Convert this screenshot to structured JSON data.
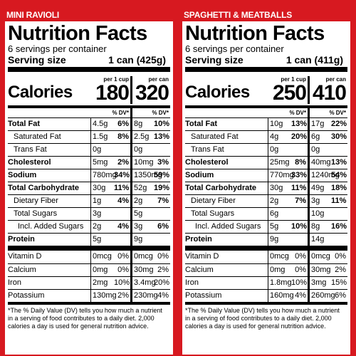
{
  "colors": {
    "brand_red": "#d71920",
    "text": "#000000",
    "background": "#ffffff"
  },
  "panels": [
    {
      "product": "MINI RAVIOLI",
      "title": "Nutrition Facts",
      "servings": "6 servings per container",
      "serving_size_label": "Serving size",
      "serving_size_value": "1 can (425g)",
      "calories_label": "Calories",
      "per_cup_label": "per 1 cup",
      "per_can_label": "per can",
      "calories_cup": "180",
      "calories_can": "320",
      "dv_label_cup": "% DV*",
      "dv_label_can": "% DV*",
      "rows": [
        {
          "label": "Total Fat",
          "a1": "4.5g",
          "d1": "6%",
          "a2": "8g",
          "d2": "10%"
        },
        {
          "label": "Saturated Fat",
          "a1": "1.5g",
          "d1": "8%",
          "a2": "2.5g",
          "d2": "13%"
        },
        {
          "label": "Trans Fat",
          "a1": "0g",
          "d1": "",
          "a2": "0g",
          "d2": ""
        },
        {
          "label": "Cholesterol",
          "a1": "5mg",
          "d1": "2%",
          "a2": "10mg",
          "d2": "3%"
        },
        {
          "label": "Sodium",
          "a1": "780mg",
          "d1": "34%",
          "a2": "1350mg",
          "d2": "59%"
        },
        {
          "label": "Total Carbohydrate",
          "a1": "30g",
          "d1": "11%",
          "a2": "52g",
          "d2": "19%"
        },
        {
          "label": "Dietary Fiber",
          "a1": "1g",
          "d1": "4%",
          "a2": "2g",
          "d2": "7%"
        },
        {
          "label": "Total Sugars",
          "a1": "3g",
          "d1": "",
          "a2": "5g",
          "d2": ""
        },
        {
          "label": "Incl. Added Sugars",
          "a1": "2g",
          "d1": "4%",
          "a2": "3g",
          "d2": "6%"
        },
        {
          "label": "Protein",
          "a1": "5g",
          "d1": "",
          "a2": "9g",
          "d2": ""
        }
      ],
      "micros": [
        {
          "label": "Vitamin D",
          "a1": "0mcg",
          "d1": "0%",
          "a2": "0mcg",
          "d2": "0%"
        },
        {
          "label": "Calcium",
          "a1": "0mg",
          "d1": "0%",
          "a2": "30mg",
          "d2": "2%"
        },
        {
          "label": "Iron",
          "a1": "2mg",
          "d1": "10%",
          "a2": "3.4mg",
          "d2": "20%"
        },
        {
          "label": "Potassium",
          "a1": "130mg",
          "d1": "2%",
          "a2": "230mg",
          "d2": "4%"
        }
      ],
      "footnote": "*The % Daily Value (DV) tells you how much a nutrient in a serving of food contributes to a daily diet. 2,000 calories a day is used for general nutrition advice."
    },
    {
      "product": "SPAGHETTI & MEATBALLS",
      "title": "Nutrition Facts",
      "servings": "6 servings per container",
      "serving_size_label": "Serving size",
      "serving_size_value": "1 can (411g)",
      "calories_label": "Calories",
      "per_cup_label": "per 1 cup",
      "per_can_label": "per can",
      "calories_cup": "250",
      "calories_can": "410",
      "dv_label_cup": "% DV*",
      "dv_label_can": "% DV*",
      "rows": [
        {
          "label": "Total Fat",
          "a1": "10g",
          "d1": "13%",
          "a2": "17g",
          "d2": "22%"
        },
        {
          "label": "Saturated Fat",
          "a1": "4g",
          "d1": "20%",
          "a2": "6g",
          "d2": "30%"
        },
        {
          "label": "Trans Fat",
          "a1": "0g",
          "d1": "",
          "a2": "0g",
          "d2": ""
        },
        {
          "label": "Cholesterol",
          "a1": "25mg",
          "d1": "8%",
          "a2": "40mg",
          "d2": "13%"
        },
        {
          "label": "Sodium",
          "a1": "770mg",
          "d1": "33%",
          "a2": "1240mg",
          "d2": "54%"
        },
        {
          "label": "Total Carbohydrate",
          "a1": "30g",
          "d1": "11%",
          "a2": "49g",
          "d2": "18%"
        },
        {
          "label": "Dietary Fiber",
          "a1": "2g",
          "d1": "7%",
          "a2": "3g",
          "d2": "11%"
        },
        {
          "label": "Total Sugars",
          "a1": "6g",
          "d1": "",
          "a2": "10g",
          "d2": ""
        },
        {
          "label": "Incl. Added Sugars",
          "a1": "5g",
          "d1": "10%",
          "a2": "8g",
          "d2": "16%"
        },
        {
          "label": "Protein",
          "a1": "9g",
          "d1": "",
          "a2": "14g",
          "d2": ""
        }
      ],
      "micros": [
        {
          "label": "Vitamin D",
          "a1": "0mcg",
          "d1": "0%",
          "a2": "0mcg",
          "d2": "0%"
        },
        {
          "label": "Calcium",
          "a1": "0mg",
          "d1": "0%",
          "a2": "30mg",
          "d2": "2%"
        },
        {
          "label": "Iron",
          "a1": "1.8mg",
          "d1": "10%",
          "a2": "3mg",
          "d2": "15%"
        },
        {
          "label": "Potassium",
          "a1": "160mg",
          "d1": "4%",
          "a2": "260mg",
          "d2": "6%"
        }
      ],
      "footnote": "*The % Daily Value (DV) tells you how much a nutrient in a serving of food contributes to a daily diet. 2,000 calories a day is used for general nutrition advice."
    }
  ]
}
